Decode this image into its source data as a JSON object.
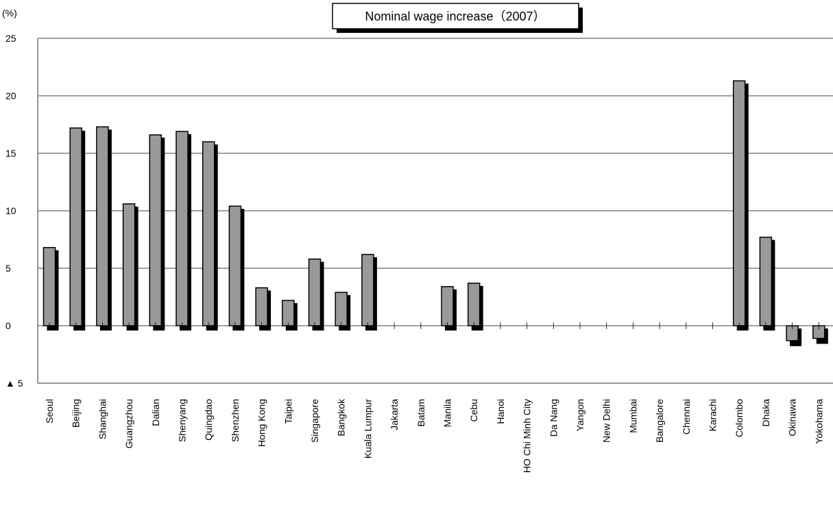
{
  "chart_data": {
    "type": "bar",
    "title": "Nominal wage increase（2007）",
    "ylabel": "(%)",
    "ylim": [
      -5,
      25
    ],
    "yticks": [
      25,
      20,
      15,
      10,
      5,
      0,
      -5
    ],
    "ytick_labels": [
      "25",
      "20",
      "15",
      "10",
      "5",
      "0",
      "▲ 5"
    ],
    "grid": true,
    "categories": [
      "Seoul",
      "Beijing",
      "Shanghai",
      "Guangzhou",
      "Dalian",
      "Shenyang",
      "Quingdao",
      "Shenzhen",
      "Hong Kong",
      "Taipei",
      "Singapore",
      "Bangkok",
      "Kuala Lumpur",
      "Jakarta",
      "Batam",
      "Manila",
      "Cebu",
      "Hanoi",
      "HO Chi Minh City",
      "Da Nang",
      "Yangon",
      "New Delhi",
      "Mumbai",
      "Bangalore",
      "Chennai",
      "Karachi",
      "Colombo",
      "Dhaka",
      "Okinawa",
      "Yokohama"
    ],
    "values": [
      6.8,
      17.2,
      17.3,
      10.6,
      16.6,
      16.9,
      16.0,
      10.4,
      3.3,
      2.2,
      5.8,
      2.9,
      6.2,
      null,
      null,
      3.4,
      3.7,
      null,
      null,
      null,
      null,
      null,
      null,
      null,
      null,
      null,
      21.3,
      7.7,
      -1.3,
      -1.1
    ],
    "colors": {
      "bar_fill": "#999999",
      "bar_shadow": "#000000",
      "grid": "#000000"
    }
  }
}
